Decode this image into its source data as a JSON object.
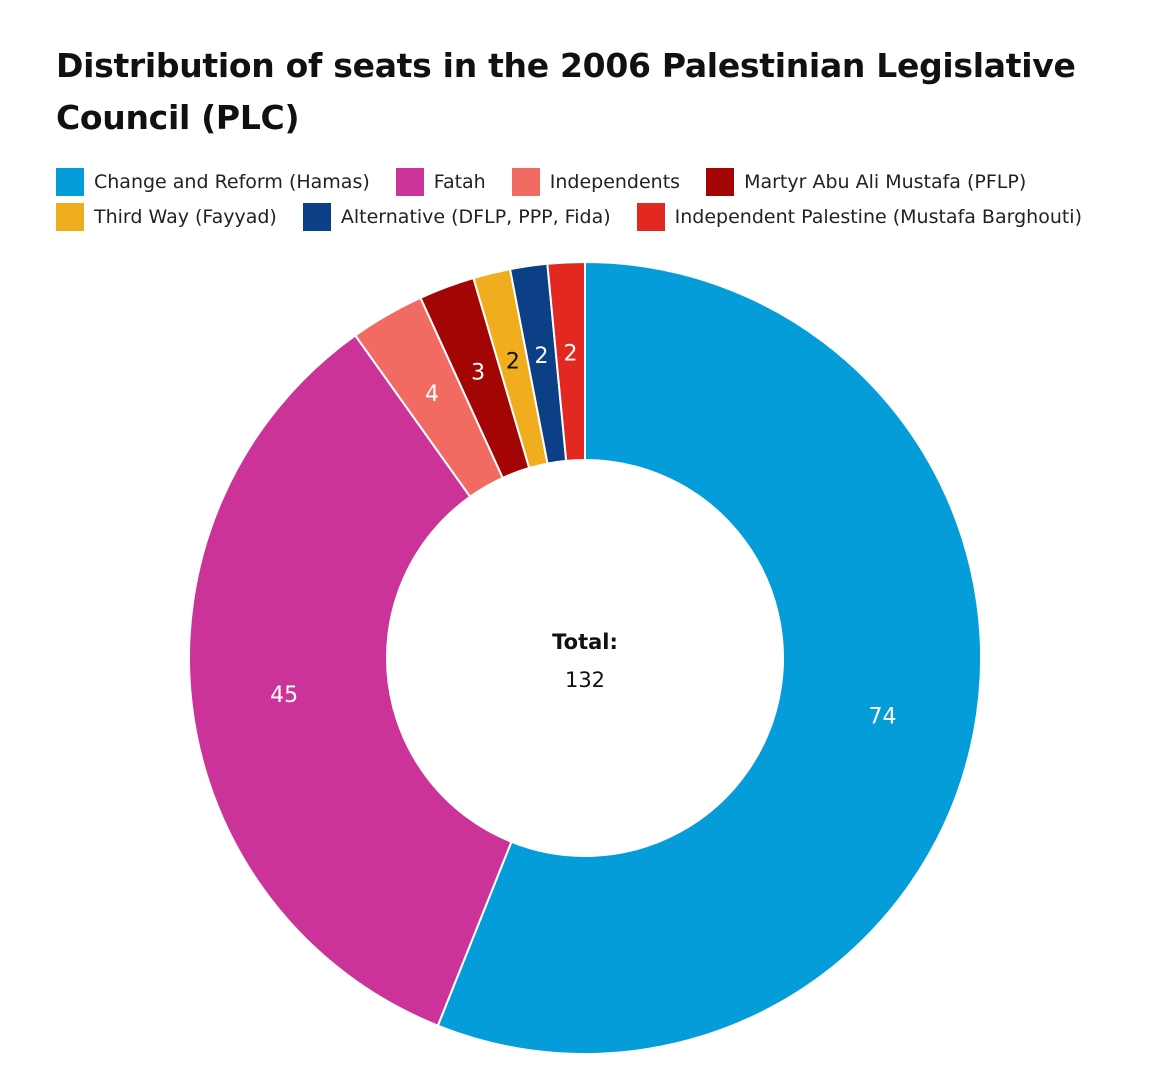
{
  "chart_data": {
    "type": "pie",
    "title": "Distribution of seats in the 2006 Palestinian Legislative Council (PLC)",
    "legend_position": "top",
    "donut": true,
    "center_label": "Total:",
    "center_value": "132",
    "series": [
      {
        "name": "Change and Reform (Hamas)",
        "value": 74,
        "label": "74",
        "color": "#049dd9",
        "label_color": "#ffffff"
      },
      {
        "name": "Fatah",
        "value": 45,
        "label": "45",
        "color": "#cc3399",
        "label_color": "#ffffff"
      },
      {
        "name": "Independents",
        "value": 4,
        "label": "4",
        "color": "#f26b63",
        "label_color": "#ffffff"
      },
      {
        "name": "Martyr Abu Ali Mustafa (PFLP)",
        "value": 3,
        "label": "3",
        "color": "#a30505",
        "label_color": "#ffffff"
      },
      {
        "name": "Third Way (Fayyad)",
        "value": 2,
        "label": "2",
        "color": "#f0ad1e",
        "label_color": "#111111"
      },
      {
        "name": "Alternative (DFLP, PPP, Fida)",
        "value": 2,
        "label": "2",
        "color": "#0b3f86",
        "label_color": "#ffffff"
      },
      {
        "name": "Independent Palestine (Mustafa Barghouti)",
        "value": 2,
        "label": "2",
        "color": "#e32822",
        "label_color": "#ffffff"
      }
    ],
    "legend_order": [
      "Change and Reform (Hamas)",
      "Fatah",
      "Independents",
      "Martyr Abu Ali Mustafa (PFLP)",
      "Third Way (Fayyad)",
      "Alternative (DFLP, PPP, Fida)",
      "Independent Palestine (Mustafa Barghouti)"
    ]
  }
}
